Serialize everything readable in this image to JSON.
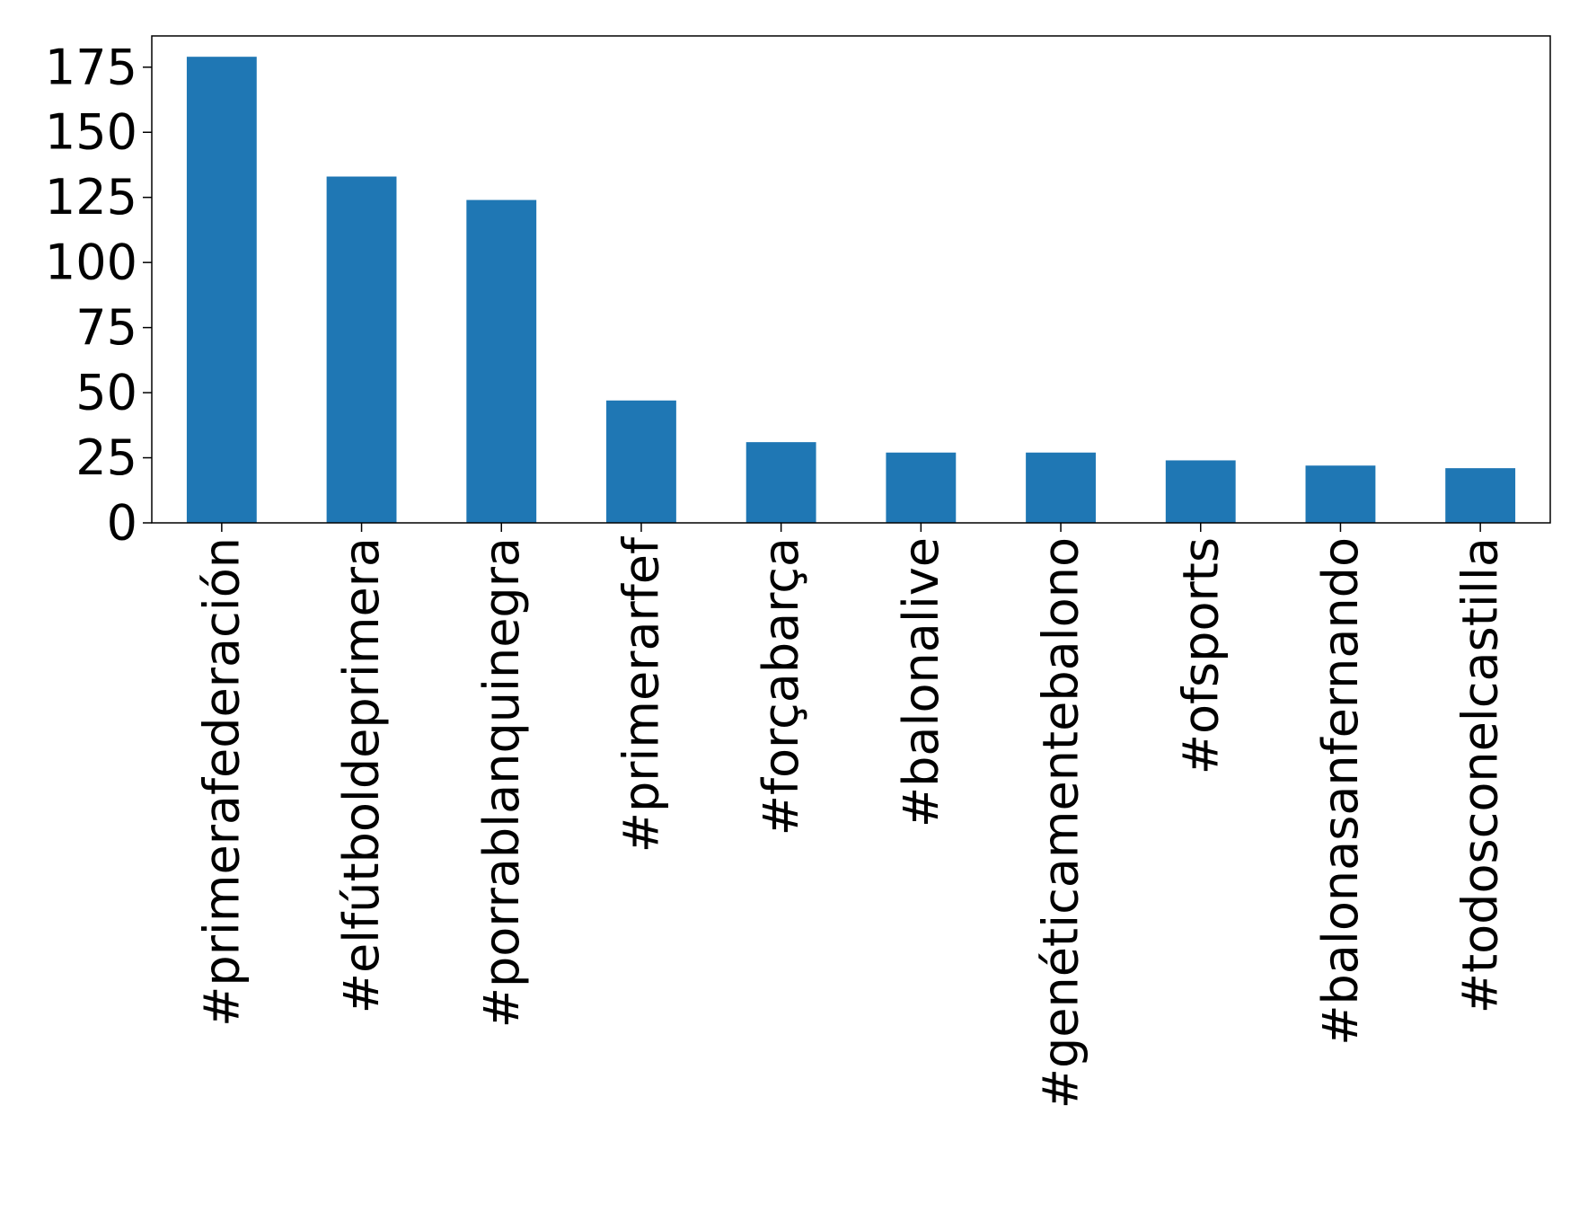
{
  "chart_data": {
    "type": "bar",
    "title": "",
    "xlabel": "",
    "ylabel": "",
    "categories": [
      "#primerafederación",
      "#elfútboldeprimera",
      "#porrablanquinegra",
      "#primerarfef",
      "#forçabarça",
      "#balonalive",
      "#genéticamentebalono",
      "#ofsports",
      "#balonasanfernando",
      "#todosconelcastilla"
    ],
    "values": [
      179,
      133,
      124,
      47,
      31,
      27,
      27,
      24,
      22,
      21
    ],
    "ylim": [
      0,
      187
    ],
    "yticks": [
      "0",
      "25",
      "50",
      "75",
      "100",
      "125",
      "150",
      "175"
    ],
    "bar_color": "#1f77b4",
    "grid": false,
    "legend": "none"
  }
}
